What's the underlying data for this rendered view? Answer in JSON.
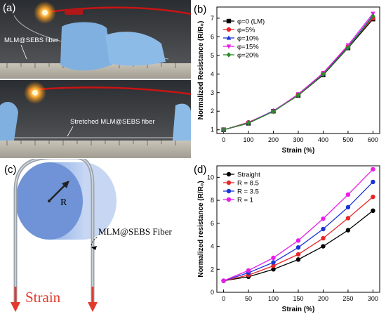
{
  "panel_a": {
    "letter": "(a)",
    "top_label": "MLM@SEBS fiber",
    "bottom_label": "Stretched MLM@SEBS fiber"
  },
  "panel_c": {
    "letter": "(c)",
    "radius_label": "R",
    "fiber_label": "MLM@SEBS Fiber",
    "strain_label": "Strain",
    "colors": {
      "cylinder": "#6f93d6",
      "fiber": "#9aa3ad",
      "arrow": "#e23b2e"
    }
  },
  "chart_data": [
    {
      "panel": "(b)",
      "type": "line",
      "title": "",
      "xlabel": "Strain (%)",
      "ylabel": "Normalized Resistance (R/R₀)",
      "x": [
        0,
        100,
        200,
        300,
        400,
        500,
        600
      ],
      "xticks": [
        "0",
        "100",
        "200",
        "300",
        "400",
        "500",
        "600"
      ],
      "ylim": [
        0.8,
        7.6
      ],
      "yticks": [
        "1",
        "2",
        "3",
        "4",
        "5",
        "6",
        "7"
      ],
      "legend_position": "top-left",
      "series": [
        {
          "name": "φ=0 (LM)",
          "color": "#000000",
          "marker": "square",
          "values": [
            1.0,
            1.35,
            2.0,
            2.85,
            3.95,
            5.4,
            6.95
          ]
        },
        {
          "name": "φ=5%",
          "color": "#e8262a",
          "marker": "circle",
          "values": [
            1.0,
            1.4,
            2.0,
            2.9,
            4.05,
            5.5,
            7.0
          ]
        },
        {
          "name": "φ=10%",
          "color": "#1b34d6",
          "marker": "triangle",
          "values": [
            1.0,
            1.38,
            2.02,
            2.88,
            4.0,
            5.45,
            7.15
          ]
        },
        {
          "name": "φ=15%",
          "color": "#e81ee8",
          "marker": "tri-down",
          "values": [
            1.0,
            1.37,
            2.0,
            2.92,
            4.05,
            5.55,
            7.25
          ]
        },
        {
          "name": "φ=20%",
          "color": "#2b8a2b",
          "marker": "diamond",
          "values": [
            1.0,
            1.36,
            1.98,
            2.86,
            3.98,
            5.42,
            7.1
          ]
        }
      ]
    },
    {
      "panel": "(d)",
      "type": "line",
      "title": "",
      "xlabel": "Strain (%)",
      "ylabel": "Normalized resistance (R/R₀)",
      "x": [
        0,
        50,
        100,
        150,
        200,
        250,
        300
      ],
      "xticks": [
        "0",
        "50",
        "100",
        "150",
        "200",
        "250",
        "300"
      ],
      "ylim": [
        0,
        11
      ],
      "yticks": [
        "0",
        "2",
        "4",
        "6",
        "8",
        "10"
      ],
      "legend_position": "top-left",
      "series": [
        {
          "name": "Straight",
          "color": "#000000",
          "marker": "circle",
          "values": [
            1.0,
            1.35,
            2.0,
            2.85,
            4.0,
            5.4,
            7.1
          ]
        },
        {
          "name": "R = 8.5",
          "color": "#e8262a",
          "marker": "circle",
          "values": [
            1.0,
            1.5,
            2.3,
            3.3,
            4.7,
            6.45,
            8.3
          ]
        },
        {
          "name": "R = 3.5",
          "color": "#1b34d6",
          "marker": "circle",
          "values": [
            1.0,
            1.7,
            2.6,
            3.9,
            5.5,
            7.4,
            9.6
          ]
        },
        {
          "name": "R = 1",
          "color": "#e81ee8",
          "marker": "circle",
          "values": [
            1.0,
            1.9,
            3.0,
            4.5,
            6.4,
            8.5,
            10.7
          ]
        }
      ]
    }
  ]
}
